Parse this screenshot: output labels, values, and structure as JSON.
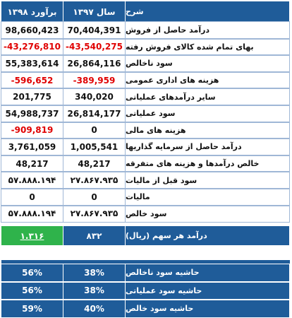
{
  "header": {
    "columns": [
      "برآورد ۱۳۹۸",
      "سال ۱۳۹۷",
      "شرح"
    ]
  },
  "table": {
    "rows": [
      [
        "98,660,423",
        "70,404,391",
        "درآمد حاصل از فروش"
      ],
      [
        "-43,276,810",
        "-43,540,275",
        "بهای تمام شده کالای فروش رفته"
      ],
      [
        "55,383,614",
        "26,864,116",
        "سود ناخالص"
      ],
      [
        "-596,652",
        "-389,959",
        "هزینه های اداری عمومی"
      ],
      [
        "201,775",
        "340,020",
        "سایر درآمدهای عملیاتی"
      ],
      [
        "54,988,737",
        "26,814,177",
        "سود عملیاتی"
      ],
      [
        "-909,819",
        "0",
        "هزینه های مالی"
      ],
      [
        "3,761,059",
        "1,005,541",
        "درآمد حاصل از سرمایه گذاریها"
      ],
      [
        "48,217",
        "48,217",
        "خالص درآمدها و هزینه های متفرقه"
      ],
      [
        "۵۷.۸۸۸.۱۹۴",
        "۲۷.۸۶۷.۹۳۵",
        "سود قبل از مالیات"
      ],
      [
        "0",
        "0",
        "مالیات"
      ],
      [
        "۵۷.۸۸۸.۱۹۴",
        "۲۷.۸۶۷.۹۳۵",
        "سود خالص"
      ]
    ],
    "eps": [
      "۱.۳۱۶",
      "۸۳۲",
      "درآمد هر سهم (ریال)"
    ]
  },
  "margins": {
    "rows": [
      [
        "56%",
        "38%",
        "حاشیه سود ناخالص"
      ],
      [
        "56%",
        "38%",
        "حاشیه سود عملیاتی"
      ],
      [
        "59%",
        "40%",
        "حاشیه سود خالص"
      ]
    ]
  }
}
